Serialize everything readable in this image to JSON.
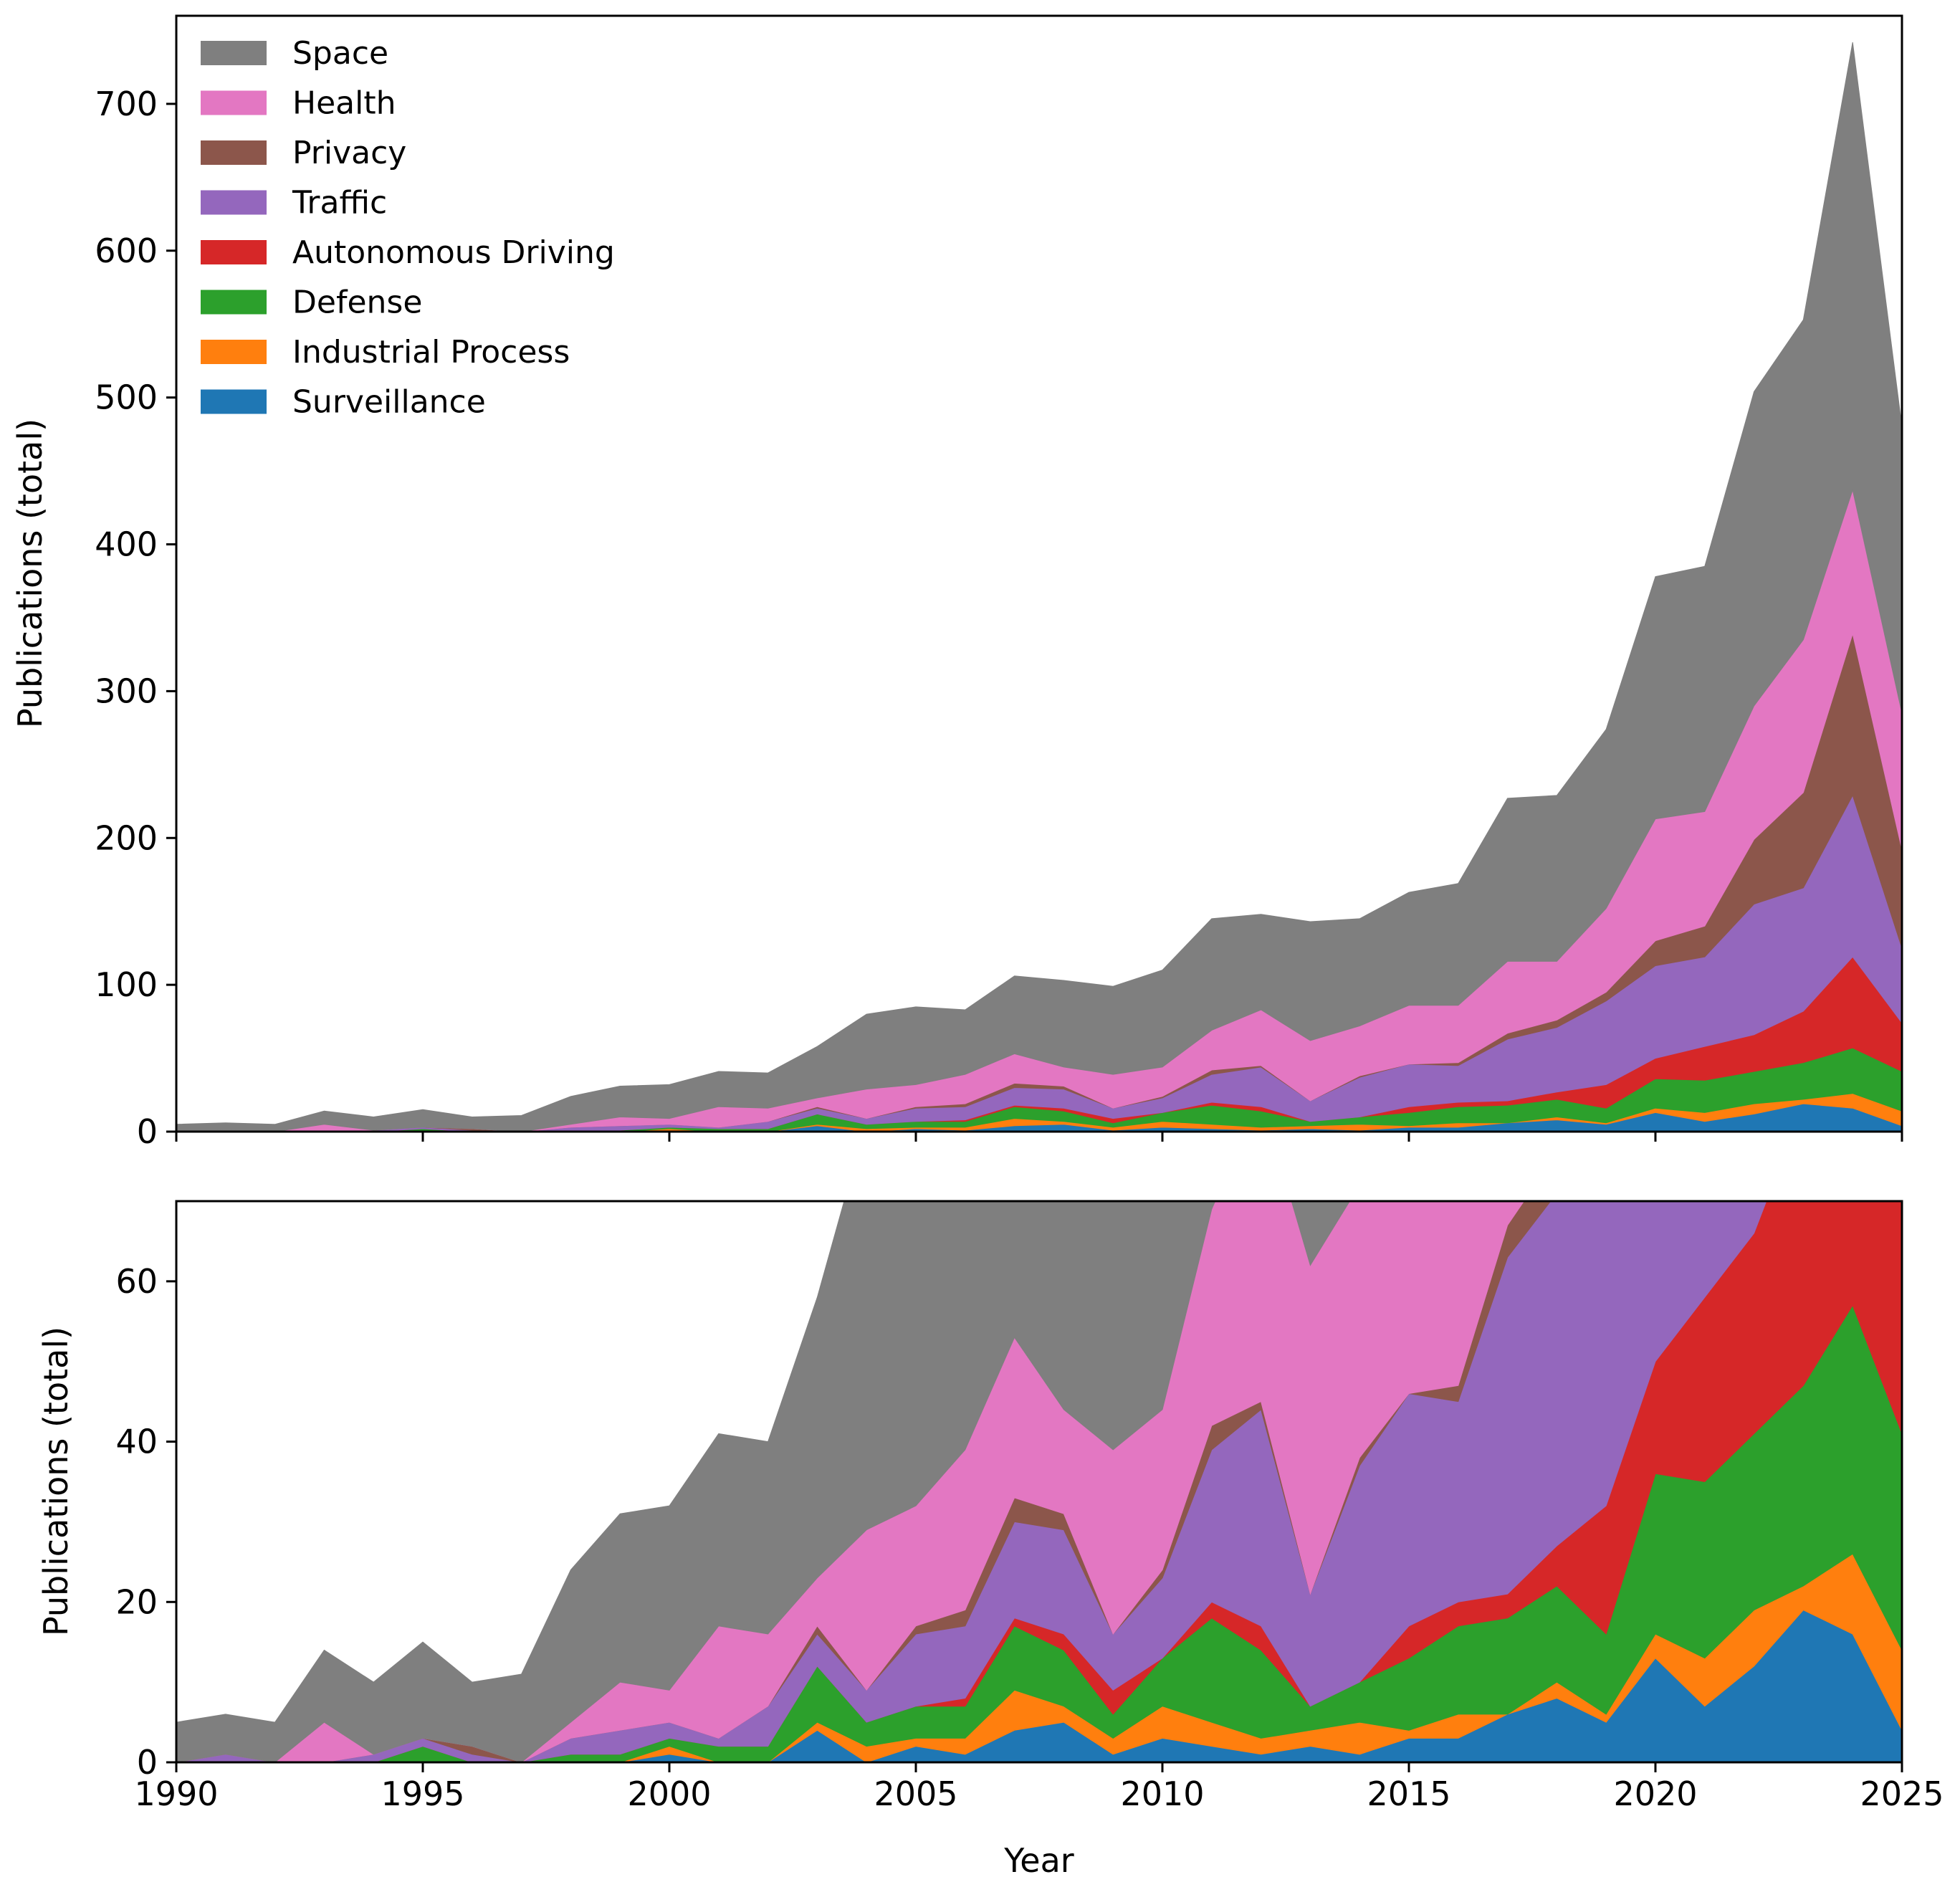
{
  "chart_data": {
    "type": "area",
    "stacked": true,
    "x": [
      1990,
      1991,
      1992,
      1993,
      1994,
      1995,
      1996,
      1997,
      1998,
      1999,
      2000,
      2001,
      2002,
      2003,
      2004,
      2005,
      2006,
      2007,
      2008,
      2009,
      2010,
      2011,
      2012,
      2013,
      2014,
      2015,
      2016,
      2017,
      2018,
      2019,
      2020,
      2021,
      2022,
      2023,
      2024,
      2025
    ],
    "xlabel": "Year",
    "xticks": [
      "1990",
      "1995",
      "2000",
      "2005",
      "2010",
      "2015",
      "2020",
      "2025"
    ],
    "xlim": [
      1990,
      2025
    ],
    "legend_position": "top-left",
    "series": [
      {
        "name": "Surveillance",
        "color": "#1f77b4",
        "values": [
          0,
          0,
          0,
          0,
          0,
          0,
          0,
          0,
          0,
          0,
          1,
          0,
          0,
          4,
          0,
          2,
          1,
          4,
          5,
          1,
          3,
          2,
          1,
          2,
          1,
          3,
          3,
          6,
          8,
          5,
          13,
          7,
          12,
          19,
          16,
          4
        ]
      },
      {
        "name": "Industrial Process",
        "color": "#ff7f0e",
        "values": [
          0,
          0,
          0,
          0,
          0,
          0,
          0,
          0,
          0,
          0,
          1,
          0,
          0,
          1,
          2,
          1,
          2,
          5,
          2,
          2,
          4,
          3,
          2,
          2,
          4,
          1,
          3,
          0,
          2,
          1,
          3,
          6,
          7,
          3,
          10,
          10
        ]
      },
      {
        "name": "Defense",
        "color": "#2ca02c",
        "values": [
          0,
          0,
          0,
          0,
          0,
          2,
          0,
          0,
          1,
          1,
          1,
          2,
          2,
          7,
          3,
          4,
          4,
          8,
          7,
          3,
          6,
          13,
          11,
          3,
          5,
          9,
          11,
          12,
          12,
          10,
          20,
          22,
          22,
          25,
          31,
          27
        ]
      },
      {
        "name": "Autonomous Driving",
        "color": "#d62728",
        "values": [
          0,
          0,
          0,
          0,
          0,
          0,
          0,
          0,
          0,
          0,
          0,
          0,
          0,
          0,
          0,
          0,
          1,
          1,
          2,
          3,
          0,
          2,
          3,
          0,
          0,
          4,
          3,
          3,
          5,
          16,
          14,
          23,
          25,
          35,
          62,
          33
        ]
      },
      {
        "name": "Traffic",
        "color": "#9467bd",
        "values": [
          0,
          1,
          0,
          0,
          1,
          1,
          1,
          0,
          2,
          3,
          2,
          1,
          5,
          4,
          4,
          9,
          9,
          12,
          13,
          7,
          10,
          19,
          27,
          14,
          27,
          29,
          25,
          42,
          44,
          57,
          63,
          61,
          89,
          84,
          110,
          51
        ]
      },
      {
        "name": "Privacy",
        "color": "#8c564b",
        "values": [
          0,
          0,
          0,
          0,
          0,
          0,
          1,
          0,
          0,
          0,
          0,
          0,
          0,
          1,
          0,
          1,
          2,
          3,
          2,
          0,
          1,
          3,
          1,
          0,
          1,
          0,
          2,
          4,
          5,
          6,
          17,
          21,
          44,
          65,
          110,
          67
        ]
      },
      {
        "name": "Health",
        "color": "#e377c2",
        "values": [
          0,
          0,
          0,
          5,
          0,
          0,
          0,
          0,
          2,
          6,
          4,
          14,
          9,
          6,
          20,
          15,
          20,
          20,
          13,
          23,
          20,
          27,
          38,
          41,
          34,
          40,
          39,
          49,
          40,
          57,
          83,
          78,
          91,
          104,
          98,
          93
        ]
      },
      {
        "name": "Space",
        "color": "#7f7f7f",
        "values": [
          5,
          5,
          5,
          9,
          9,
          12,
          8,
          11,
          19,
          21,
          23,
          24,
          24,
          35,
          51,
          53,
          44,
          53,
          59,
          60,
          66,
          76,
          65,
          81,
          73,
          77,
          83,
          111,
          113,
          122,
          165,
          167,
          214,
          218,
          305,
          195
        ]
      }
    ],
    "panels": [
      {
        "name": "full",
        "ylabel": "Publications (total)",
        "ylim": [
          0,
          760
        ],
        "yticks": [
          "0",
          "100",
          "200",
          "300",
          "400",
          "500",
          "600",
          "700"
        ]
      },
      {
        "name": "zoom",
        "ylabel": "Publications (total)",
        "ylim": [
          0,
          70
        ],
        "yticks": [
          "0",
          "20",
          "40",
          "60"
        ]
      }
    ]
  }
}
